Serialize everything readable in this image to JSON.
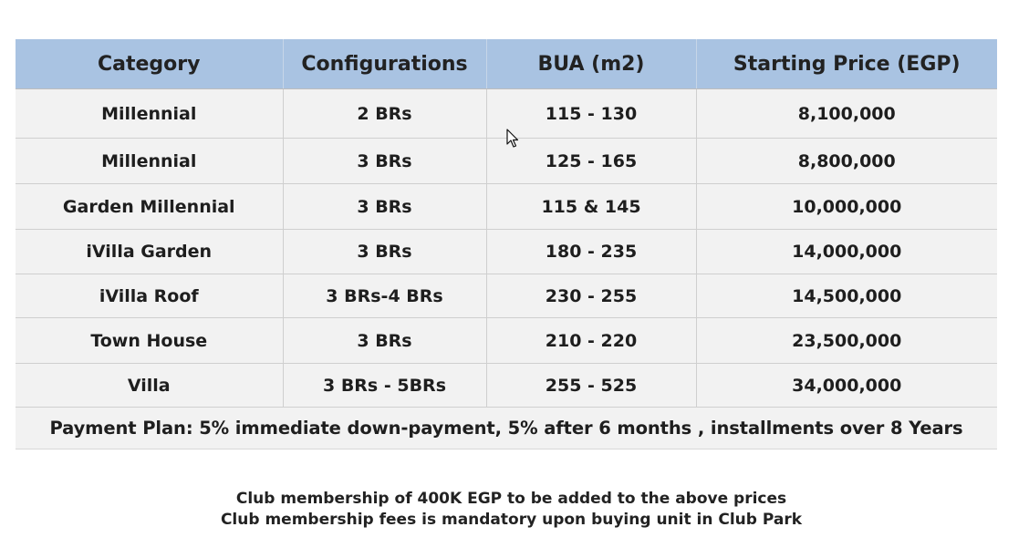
{
  "table": {
    "headers": [
      "Category",
      "Configurations",
      "BUA (m2)",
      "Starting Price (EGP)"
    ],
    "rows": [
      [
        "Millennial",
        "2 BRs",
        "115 - 130",
        "8,100,000"
      ],
      [
        "Millennial",
        "3 BRs",
        "125 - 165",
        "8,800,000"
      ],
      [
        "Garden Millennial",
        "3 BRs",
        "115 & 145",
        "10,000,000"
      ],
      [
        "iVilla Garden",
        "3 BRs",
        "180 - 235",
        "14,000,000"
      ],
      [
        "iVilla Roof",
        "3 BRs-4 BRs",
        "230 - 255",
        "14,500,000"
      ],
      [
        "Town House",
        "3 BRs",
        "210 - 220",
        "23,500,000"
      ],
      [
        "Villa",
        "3 BRs - 5BRs",
        "255 - 525",
        "34,000,000"
      ]
    ],
    "payment_plan": "Payment Plan: 5% immediate down-payment, 5% after 6 months , installments over 8 Years"
  },
  "notes": [
    "Club membership of 400K EGP to be added to the above prices",
    "Club membership fees is mandatory upon buying unit in Club Park"
  ],
  "colors": {
    "header_bg": "#a9c3e2",
    "row_bg": "#f2f2f2"
  },
  "icons": {
    "cursor": "mouse-pointer-icon"
  }
}
